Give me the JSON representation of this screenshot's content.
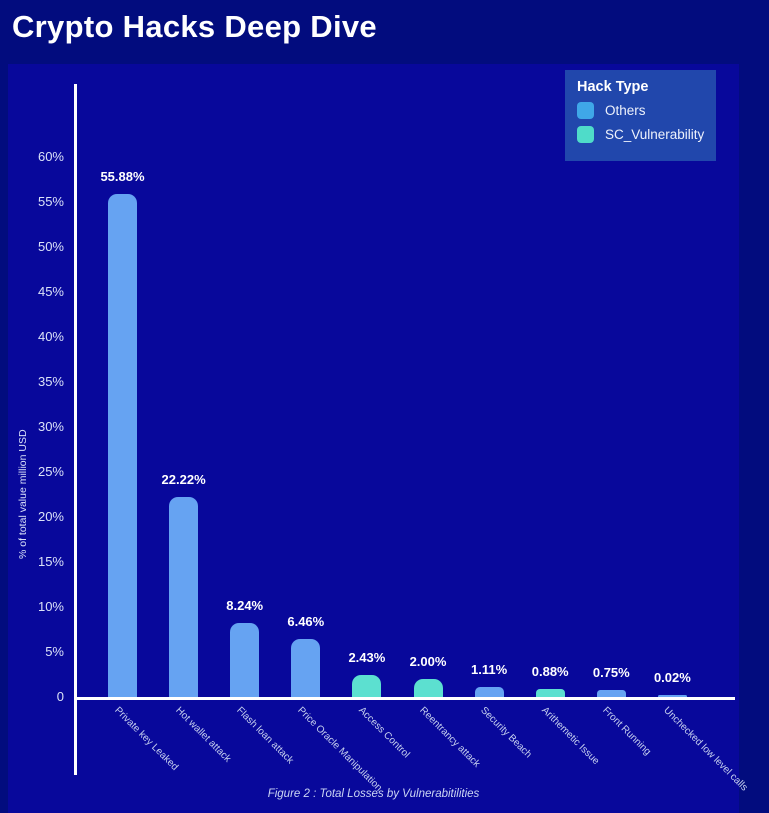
{
  "header": {
    "title": "Crypto Hacks Deep Dive"
  },
  "legend": {
    "title": "Hack Type",
    "items": [
      {
        "label": "Others",
        "color": "#3fa7e8"
      },
      {
        "label": "SC_Vulnerability",
        "color": "#4fdcc9"
      }
    ]
  },
  "chart_data": {
    "type": "bar",
    "title": "Crypto Hacks Deep Dive",
    "xlabel": "",
    "ylabel": "% of total value million USD",
    "categories": [
      "Private key Leaked",
      "Hot wallet attack",
      "Flash loan attack",
      "Price Oracle Manipulation",
      "Access Control",
      "Reentrancy attack",
      "Security Beach",
      "Arithemetic Issue",
      "Front Running",
      "Unchecked low level calls"
    ],
    "values": [
      55.88,
      22.22,
      8.24,
      6.46,
      2.43,
      2.0,
      1.11,
      0.88,
      0.75,
      0.02
    ],
    "value_labels": [
      "55.88%",
      "22.22%",
      "8.24%",
      "6.46%",
      "2.43%",
      "2.00%",
      "1.11%",
      "0.88%",
      "0.75%",
      "0.02%"
    ],
    "series_assignment": [
      "Others",
      "Others",
      "Others",
      "Others",
      "SC_Vulnerability",
      "SC_Vulnerability",
      "Others",
      "SC_Vulnerability",
      "Others",
      "Others"
    ],
    "bar_colors": {
      "Others": "#66a3f2",
      "SC_Vulnerability": "#5ce0d0"
    },
    "ytick_values": [
      0,
      5,
      10,
      15,
      20,
      25,
      30,
      35,
      40,
      45,
      50,
      55,
      60
    ],
    "ytick_labels": [
      "0",
      "5%",
      "10%",
      "15%",
      "20%",
      "25%",
      "30%",
      "35%",
      "40%",
      "45%",
      "50%",
      "55%",
      "60%"
    ],
    "ylim": [
      0,
      62
    ],
    "grid": false,
    "legend_position": "top-right",
    "legend_title": "Hack Type"
  },
  "caption": {
    "text": "Figure 2 : Total Losses by Vulnerabitilities"
  }
}
